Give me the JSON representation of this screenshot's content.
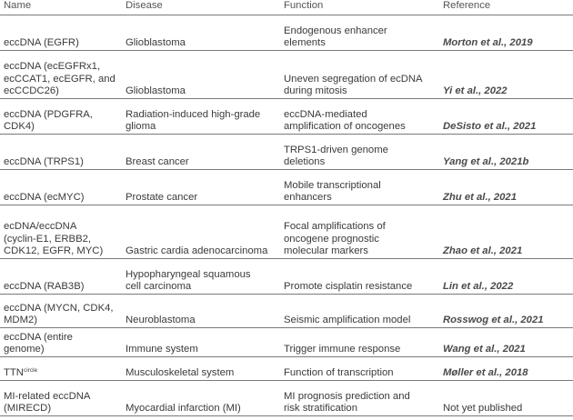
{
  "table": {
    "headers": [
      "Name",
      "Disease",
      "Function",
      "Reference"
    ],
    "rows": [
      {
        "name": "eccDNA (EGFR)",
        "disease": "Glioblastoma",
        "function": "Endogenous enhancer\nelements",
        "reference": "Morton et al., 2019"
      },
      {
        "name": "eccDNA (ecEGFRx1,\necCCAT1, ecEGFR, and\necCCDC26)",
        "disease": "Glioblastoma",
        "function": "Uneven segregation of ecDNA\nduring mitosis",
        "reference": "Yi et al., 2022"
      },
      {
        "name": "eccDNA (PDGFRA,\nCDK4)",
        "disease": "Radiation-induced high-grade\nglioma",
        "function": "eccDNA-mediated\namplification of oncogenes",
        "reference": "DeSisto et al., 2021"
      },
      {
        "name": "eccDNA (TRPS1)",
        "disease": "Breast cancer",
        "function": "TRPS1-driven genome\ndeletions",
        "reference": "Yang et al., 2021b"
      },
      {
        "name": "eccDNA (ecMYC)",
        "disease": "Prostate cancer",
        "function": "Mobile transcriptional\nenhancers",
        "reference": "Zhu et al., 2021"
      },
      {
        "name": "ecDNA/eccDNA\n(cyclin-E1, ERBB2,\nCDK12, EGFR, MYC)",
        "disease": "Gastric cardia adenocarcinoma",
        "function": "Focal amplifications of\noncogene prognostic\nmolecular markers",
        "reference": "Zhao et al., 2021"
      },
      {
        "name": "eccDNA (RAB3B)",
        "disease": "Hypopharyngeal squamous\ncell carcinoma",
        "function": "Promote cisplatin resistance",
        "reference": "Lin et al., 2022"
      },
      {
        "name": "eccDNA (MYCN, CDK4,\nMDM2)",
        "disease": "Neuroblastoma",
        "function": "Seismic amplification model",
        "reference": "Rosswog et al., 2021"
      },
      {
        "name": "eccDNA (entire\ngenome)",
        "disease": "Immune system",
        "function": "Trigger immune response",
        "reference": "Wang et al., 2021"
      },
      {
        "name": "TTN",
        "name_sup": "circle",
        "disease": "Musculoskeletal system",
        "function": "Function of transcription",
        "reference": "Møller et al., 2018"
      },
      {
        "name": "MI-related eccDNA\n(MIRECD)",
        "disease": "Myocardial infarction (MI)",
        "function": "MI prognosis prediction and\nrisk stratification",
        "reference": "Not yet published",
        "reference_plain": true
      }
    ]
  }
}
